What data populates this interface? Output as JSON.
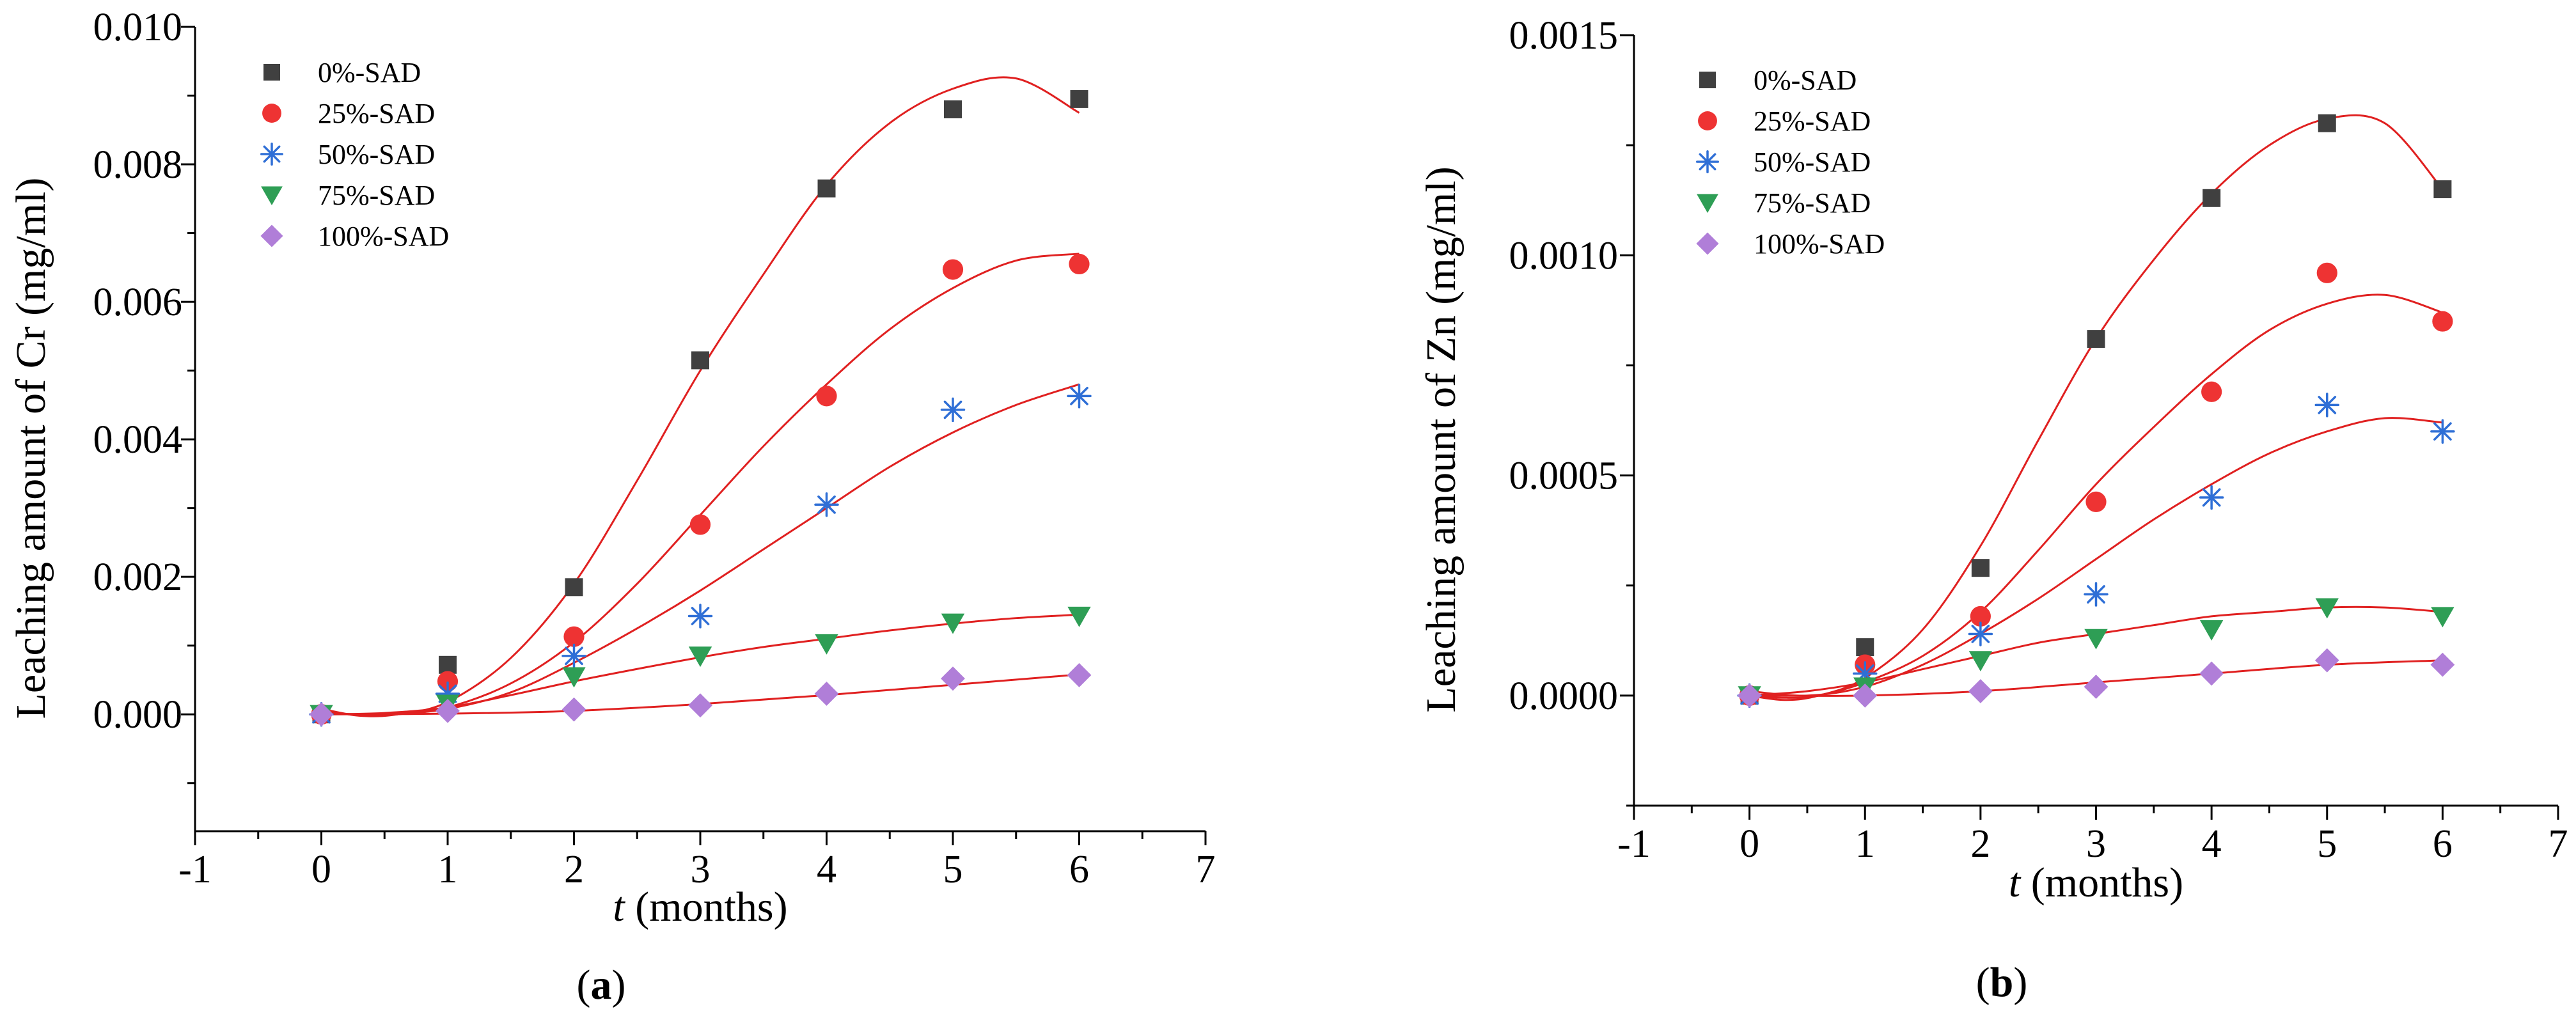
{
  "figure": {
    "panels": [
      "a",
      "b"
    ]
  },
  "chart_data": [
    {
      "panel": "a",
      "type": "scatter",
      "caption_open": "(",
      "caption_letter": "a",
      "caption_close": ")",
      "title": "",
      "xlabel_symbol": "t",
      "xlabel_rest": " (months)",
      "ylabel": "Leaching amount of Cr (mg/ml)",
      "xlim": [
        -1,
        7
      ],
      "ylim": [
        -0.0017,
        0.01
      ],
      "xticks": [
        -1,
        0,
        1,
        2,
        3,
        4,
        5,
        6,
        7
      ],
      "xtick_labels": [
        "-1",
        "0",
        "1",
        "2",
        "3",
        "4",
        "5",
        "6",
        "7"
      ],
      "yticks": [
        0,
        0.002,
        0.004,
        0.006,
        0.008,
        0.01
      ],
      "ytick_labels": [
        "0.000",
        "0.002",
        "0.004",
        "0.006",
        "0.008",
        "0.010"
      ],
      "x": [
        0,
        1,
        2,
        3,
        4,
        5,
        6
      ],
      "series": [
        {
          "name": "0%-SAD",
          "marker": "square",
          "color": "#404040",
          "values": [
            0.0,
            0.00072,
            0.00185,
            0.00515,
            0.00765,
            0.0088,
            0.00895
          ],
          "fit": [
            [
              0,
              8e-05
            ],
            [
              0.3,
              -2e-05
            ],
            [
              0.6,
              0.0
            ],
            [
              1,
              0.00018
            ],
            [
              1.5,
              0.00082
            ],
            [
              2,
              0.0019
            ],
            [
              2.5,
              0.0034
            ],
            [
              3,
              0.005
            ],
            [
              3.5,
              0.0064
            ],
            [
              4,
              0.0077
            ],
            [
              4.5,
              0.0086
            ],
            [
              5,
              0.0091
            ],
            [
              5.5,
              0.00925
            ],
            [
              6,
              0.00875
            ]
          ]
        },
        {
          "name": "25%-SAD",
          "marker": "circle",
          "color": "#ee3333",
          "values": [
            0.0,
            0.00048,
            0.00113,
            0.00276,
            0.00463,
            0.00647,
            0.00655
          ],
          "fit": [
            [
              0,
              4e-05
            ],
            [
              0.3,
              -1e-05
            ],
            [
              0.6,
              0.0
            ],
            [
              1,
              0.0001
            ],
            [
              1.5,
              0.00045
            ],
            [
              2,
              0.00105
            ],
            [
              2.5,
              0.0019
            ],
            [
              3,
              0.0029
            ],
            [
              3.5,
              0.0039
            ],
            [
              4,
              0.0048
            ],
            [
              4.5,
              0.0056
            ],
            [
              5,
              0.0062
            ],
            [
              5.5,
              0.0066
            ],
            [
              6,
              0.0067
            ]
          ]
        },
        {
          "name": "50%-SAD",
          "marker": "asterisk",
          "color": "#2f6fd6",
          "values": [
            0.0,
            0.0003,
            0.00085,
            0.00143,
            0.00305,
            0.00443,
            0.00463
          ],
          "fit": [
            [
              0,
              2e-05
            ],
            [
              0.5,
              0.0
            ],
            [
              1,
              8e-05
            ],
            [
              1.5,
              0.00032
            ],
            [
              2,
              0.00075
            ],
            [
              2.5,
              0.00125
            ],
            [
              3,
              0.0018
            ],
            [
              3.5,
              0.0024
            ],
            [
              4,
              0.003
            ],
            [
              4.5,
              0.0036
            ],
            [
              5,
              0.0041
            ],
            [
              5.5,
              0.0045
            ],
            [
              6,
              0.0048
            ]
          ]
        },
        {
          "name": "75%-SAD",
          "marker": "triangle-down",
          "color": "#2e9e55",
          "values": [
            0.0,
            0.00015,
            0.00055,
            0.00085,
            0.00103,
            0.00133,
            0.00143
          ],
          "fit": [
            [
              0,
              0.0
            ],
            [
              0.5,
              2e-05
            ],
            [
              1,
              0.0001
            ],
            [
              1.5,
              0.00028
            ],
            [
              2,
              0.00048
            ],
            [
              2.5,
              0.00066
            ],
            [
              3,
              0.00083
            ],
            [
              3.5,
              0.00098
            ],
            [
              4,
              0.0011
            ],
            [
              4.5,
              0.00122
            ],
            [
              5,
              0.00132
            ],
            [
              5.5,
              0.0014
            ],
            [
              6,
              0.00145
            ]
          ]
        },
        {
          "name": "100%-SAD",
          "marker": "diamond",
          "color": "#b07ed8",
          "values": [
            0.0,
            5e-05,
            7e-05,
            0.00013,
            0.0003,
            0.00052,
            0.00057
          ],
          "fit": [
            [
              0,
              0.0
            ],
            [
              1,
              1e-05
            ],
            [
              2,
              5e-05
            ],
            [
              3,
              0.00015
            ],
            [
              4,
              0.00028
            ],
            [
              5,
              0.00043
            ],
            [
              6,
              0.00058
            ]
          ]
        }
      ],
      "legend": "top-left",
      "fit_color": "#e02020"
    },
    {
      "panel": "b",
      "type": "scatter",
      "caption_open": "(",
      "caption_letter": "b",
      "caption_close": ")",
      "title": "",
      "xlabel_symbol": "t",
      "xlabel_rest": " (months)",
      "ylabel": "Leaching amount of Zn (mg/ml)",
      "xlim": [
        -1,
        7
      ],
      "ylim": [
        -0.00025,
        0.0015
      ],
      "xticks": [
        -1,
        0,
        1,
        2,
        3,
        4,
        5,
        6,
        7
      ],
      "xtick_labels": [
        "-1",
        "0",
        "1",
        "2",
        "3",
        "4",
        "5",
        "6",
        "7"
      ],
      "yticks": [
        0,
        0.0005,
        0.001,
        0.0015
      ],
      "ytick_labels": [
        "0.0000",
        "0.0005",
        "0.0010",
        "0.0015"
      ],
      "x": [
        0,
        1,
        2,
        3,
        4,
        5,
        6
      ],
      "series": [
        {
          "name": "0%-SAD",
          "marker": "square",
          "color": "#404040",
          "values": [
            0.0,
            0.00011,
            0.00029,
            0.00081,
            0.00113,
            0.0013,
            0.00115
          ],
          "fit": [
            [
              0,
              0.0
            ],
            [
              0.3,
              -1e-05
            ],
            [
              0.6,
              0.0
            ],
            [
              1,
              4e-05
            ],
            [
              1.5,
              0.00015
            ],
            [
              2,
              0.00034
            ],
            [
              2.5,
              0.00058
            ],
            [
              3,
              0.00081
            ],
            [
              3.5,
              0.00099
            ],
            [
              4,
              0.00114
            ],
            [
              4.5,
              0.00125
            ],
            [
              5,
              0.00131
            ],
            [
              5.5,
              0.0013
            ],
            [
              6,
              0.00115
            ]
          ]
        },
        {
          "name": "25%-SAD",
          "marker": "circle",
          "color": "#ee3333",
          "values": [
            0.0,
            7e-05,
            0.00018,
            0.00044,
            0.00069,
            0.00096,
            0.00085
          ],
          "fit": [
            [
              0,
              0.0
            ],
            [
              0.3,
              -5e-06
            ],
            [
              0.6,
              0.0
            ],
            [
              1,
              3e-05
            ],
            [
              1.5,
              9e-05
            ],
            [
              2,
              0.00019
            ],
            [
              2.5,
              0.00033
            ],
            [
              3,
              0.00048
            ],
            [
              3.5,
              0.00061
            ],
            [
              4,
              0.00073
            ],
            [
              4.5,
              0.00083
            ],
            [
              5,
              0.00089
            ],
            [
              5.5,
              0.00091
            ],
            [
              6,
              0.00087
            ]
          ]
        },
        {
          "name": "50%-SAD",
          "marker": "asterisk",
          "color": "#2f6fd6",
          "values": [
            0.0,
            5e-05,
            0.00014,
            0.00023,
            0.00045,
            0.00066,
            0.0006
          ],
          "fit": [
            [
              0,
              1e-05
            ],
            [
              0.5,
              0.0
            ],
            [
              1,
              2e-05
            ],
            [
              1.5,
              7e-05
            ],
            [
              2,
              0.00014
            ],
            [
              2.5,
              0.00022
            ],
            [
              3,
              0.00031
            ],
            [
              3.5,
              0.0004
            ],
            [
              4,
              0.00048
            ],
            [
              4.5,
              0.00055
            ],
            [
              5,
              0.0006
            ],
            [
              5.5,
              0.00063
            ],
            [
              6,
              0.00062
            ]
          ]
        },
        {
          "name": "75%-SAD",
          "marker": "triangle-down",
          "color": "#2e9e55",
          "values": [
            0.0,
            2e-05,
            8e-05,
            0.00013,
            0.00015,
            0.0002,
            0.00018
          ],
          "fit": [
            [
              0,
              0.0
            ],
            [
              0.5,
              1e-05
            ],
            [
              1,
              3e-05
            ],
            [
              1.5,
              6e-05
            ],
            [
              2,
              9e-05
            ],
            [
              2.5,
              0.00012
            ],
            [
              3,
              0.00014
            ],
            [
              3.5,
              0.00016
            ],
            [
              4,
              0.00018
            ],
            [
              4.5,
              0.00019
            ],
            [
              5,
              0.0002
            ],
            [
              5.5,
              0.0002
            ],
            [
              6,
              0.00019
            ]
          ]
        },
        {
          "name": "100%-SAD",
          "marker": "diamond",
          "color": "#b07ed8",
          "values": [
            0.0,
            0.0,
            1e-05,
            2e-05,
            5e-05,
            8e-05,
            7e-05
          ],
          "fit": [
            [
              0,
              0.0
            ],
            [
              1,
              0.0
            ],
            [
              2,
              1e-05
            ],
            [
              3,
              3e-05
            ],
            [
              4,
              5e-05
            ],
            [
              5,
              7e-05
            ],
            [
              6,
              8e-05
            ]
          ]
        }
      ],
      "legend": "top-left",
      "fit_color": "#e02020"
    }
  ]
}
